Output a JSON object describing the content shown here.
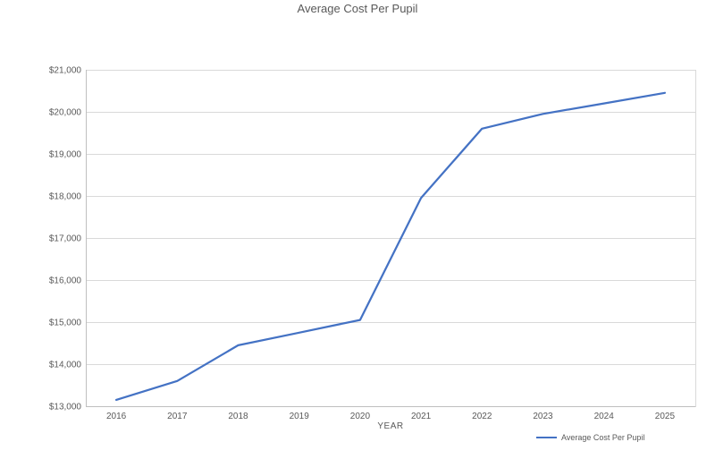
{
  "chart_data": {
    "type": "line",
    "title": "Average Cost Per Pupil",
    "xlabel": "YEAR",
    "ylabel": "",
    "categories": [
      "2016",
      "2017",
      "2018",
      "2019",
      "2020",
      "2021",
      "2022",
      "2023",
      "2024",
      "2025"
    ],
    "series": [
      {
        "name": "Average Cost Per Pupil",
        "values": [
          13150,
          13600,
          14450,
          14750,
          15050,
          17950,
          19600,
          19950,
          20200,
          20450
        ],
        "color": "#4472C4"
      }
    ],
    "ylim": [
      13000,
      21000
    ],
    "ytick_interval": 1000,
    "ytick_prefix": "$",
    "grid": "horizontal",
    "legend_position": "bottom-right",
    "colors": {
      "gridline": "#D9D9D9",
      "axis": "#BFBFBF",
      "text": "#595959",
      "background": "#FFFFFF"
    }
  }
}
